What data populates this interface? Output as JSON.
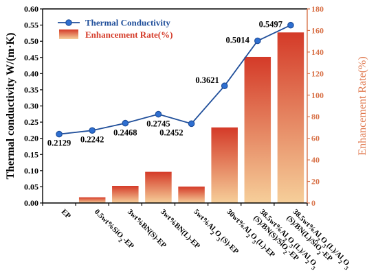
{
  "chart_data": {
    "type": "bar",
    "categories": [
      "EP",
      "0.5wt%SiO₂-EP",
      "3wt%BN(S)-EP",
      "3wt%BN(L)-EP",
      "5wt%Al₂O₃(S)-EP",
      "30wt%Al₂O₃(L)-EP",
      "38.5wt%Al₂O₃(L)/Al₂O₃(S)/BN(S)/SiO₂-EP",
      "38.5wt%Al₂O₃(L)/Al₂O₃(S)/BN(L)/SiO₂-EP"
    ],
    "category_lines": [
      [
        "EP"
      ],
      [
        "0.5wt%SiO₂-EP"
      ],
      [
        "3wt%BN(S)-EP"
      ],
      [
        "3wt%BN(L)-EP"
      ],
      [
        "5wt%Al₂O₃(S)-EP"
      ],
      [
        "30wt%Al₂O₃(L)-EP"
      ],
      [
        "38.5wt%Al₂O₃(L)/Al₂O₃",
        "(S)/BN(S)/SiO₂-EP"
      ],
      [
        "38.5wt%Al₂O₃(L)/Al₂O₃",
        "(S)/BN(L)/SiO₂-EP"
      ]
    ],
    "series": [
      {
        "name": "Thermal Conductivity",
        "kind": "line",
        "axis": "left",
        "color": "#1f4e9a",
        "values": [
          0.2129,
          0.2242,
          0.2468,
          0.2745,
          0.2452,
          0.3621,
          0.5014,
          0.5497
        ],
        "labels": [
          "0.2129",
          "0.2242",
          "0.2468",
          "0.2745",
          "0.2452",
          "0.3621",
          "0.5014",
          "0.5497"
        ]
      },
      {
        "name": "Enhancement Rate(%)",
        "kind": "bar",
        "axis": "right",
        "color_top": "#d43a28",
        "color_bottom": "#f6cf9a",
        "values": [
          0,
          5.3,
          15.9,
          28.9,
          15.2,
          70.1,
          135.5,
          158.2
        ]
      }
    ],
    "ylabel": "Thermal conductivity W/(m·K)",
    "ylabel_right": "Enhancement Rate(%)",
    "ylim": [
      0,
      0.6
    ],
    "ylim_right": [
      0,
      180
    ],
    "yticks": [
      "0.00",
      "0.05",
      "0.10",
      "0.15",
      "0.20",
      "0.25",
      "0.30",
      "0.35",
      "0.40",
      "0.45",
      "0.50",
      "0.55",
      "0.60"
    ],
    "yticks_right": [
      "0",
      "20",
      "40",
      "60",
      "80",
      "100",
      "120",
      "140",
      "160",
      "180"
    ],
    "legend_placement": "top-left",
    "grid": false
  }
}
